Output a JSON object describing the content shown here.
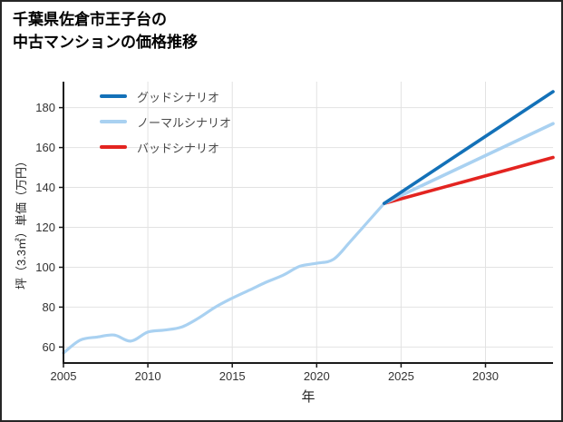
{
  "title": {
    "line1": "千葉県佐倉市王子台の",
    "line2": "中古マンションの価格推移"
  },
  "chart_data": {
    "type": "line",
    "title": "千葉県佐倉市王子台の中古マンションの価格推移",
    "xlabel": "年",
    "ylabel": "坪（3.3㎡）単価（万円）",
    "xlim": [
      2005,
      2034
    ],
    "ylim": [
      52,
      193
    ],
    "x_ticks": [
      2005,
      2010,
      2015,
      2020,
      2025,
      2030
    ],
    "y_ticks": [
      60,
      80,
      100,
      120,
      140,
      160,
      180
    ],
    "grid": true,
    "legend_position": "top-left-inside",
    "colors": {
      "axis": "#1a1a1a",
      "grid": "#e2e2e2",
      "tick": "#333333"
    },
    "history": {
      "color": "#a9d1f1",
      "x": [
        2005,
        2006,
        2007,
        2008,
        2009,
        2010,
        2011,
        2012,
        2013,
        2014,
        2015,
        2016,
        2017,
        2018,
        2019,
        2020,
        2021,
        2022,
        2023,
        2024
      ],
      "values": [
        57,
        63.5,
        65,
        66,
        63,
        67.5,
        68.5,
        70,
        74.5,
        80,
        84.5,
        88.5,
        92.5,
        96,
        100.5,
        102,
        104,
        113,
        122.5,
        132
      ]
    },
    "series": [
      {
        "name": "グッドシナリオ",
        "color": "#1371b8",
        "x": [
          2024,
          2034
        ],
        "values": [
          132,
          188
        ]
      },
      {
        "name": "ノーマルシナリオ",
        "color": "#a9d1f1",
        "x": [
          2024,
          2034
        ],
        "values": [
          132,
          172
        ]
      },
      {
        "name": "バッドシナリオ",
        "color": "#e32420",
        "x": [
          2024,
          2034
        ],
        "values": [
          132,
          155
        ]
      }
    ]
  }
}
